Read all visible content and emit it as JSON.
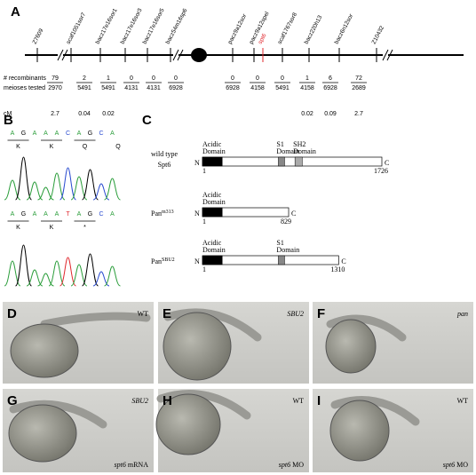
{
  "panel_a": {
    "label": "A",
    "markers": [
      {
        "name": "Z7609",
        "color": "#000000"
      },
      {
        "name": "scaf1051sor7",
        "color": "#000000"
      },
      {
        "name": "bacz17e16sor1",
        "color": "#000000"
      },
      {
        "name": "bacz17e16sor3",
        "color": "#000000"
      },
      {
        "name": "bacz17e16sor5",
        "color": "#000000"
      },
      {
        "name": "bacz54m16sp6",
        "color": "#000000"
      },
      {
        "name": "pacz9a12sor",
        "color": "#000000"
      },
      {
        "name": "pacz9a12spel",
        "color": "#000000"
      },
      {
        "name": "spt6",
        "color": "#e0282e"
      },
      {
        "name": "scaf1767sor8",
        "color": "#000000"
      },
      {
        "name": "bacz220h13",
        "color": "#000000"
      },
      {
        "name": "bacz6n12sor",
        "color": "#000000"
      },
      {
        "name": "Z10432",
        "color": "#000000"
      }
    ],
    "row_labels": [
      "# recombinants",
      "meioses tested",
      "cM"
    ],
    "recombinants": [
      "79",
      "2",
      "1",
      "0",
      "0",
      "0",
      "0",
      "0",
      "0",
      "1",
      "6",
      "72"
    ],
    "meioses": [
      "2970",
      "5491",
      "5491",
      "4131",
      "4131",
      "6928",
      "6928",
      "4158",
      "5491",
      "4158",
      "6928",
      "2689"
    ],
    "cm": [
      "2.7",
      "0.04",
      "0.02",
      null,
      null,
      null,
      null,
      null,
      null,
      "0.02",
      "0.09",
      "2.7"
    ]
  },
  "panel_b": {
    "label": "B",
    "traces": [
      {
        "bases": [
          "A",
          "G",
          "A",
          "A",
          "A",
          "C",
          "A",
          "G",
          "C",
          "A"
        ],
        "aa": [
          "K",
          "K",
          "Q",
          "Q"
        ]
      },
      {
        "bases": [
          "A",
          "G",
          "A",
          "A",
          "A",
          "T",
          "A",
          "G",
          "C",
          "A"
        ],
        "aa": [
          "K",
          "K",
          "*"
        ]
      }
    ]
  },
  "panel_c": {
    "label": "C",
    "n": "N",
    "c": "C",
    "start": "1",
    "constructs": [
      {
        "name": "wild type",
        "name2": "Spt6",
        "end": "1726",
        "domains": [
          {
            "line1": "Acidic",
            "line2": "Domain"
          },
          {
            "line1": "S1",
            "line2": "Domain"
          },
          {
            "line1": "SH2",
            "line2": "Domain"
          }
        ]
      },
      {
        "name": "Pan",
        "sup": "m313",
        "end": "829",
        "domains": [
          {
            "line1": "Acidic",
            "line2": "Domain"
          }
        ]
      },
      {
        "name": "Pan",
        "sup": "SBU2",
        "end": "1310",
        "domains": [
          {
            "line1": "Acidic",
            "line2": "Domain"
          },
          {
            "line1": "S1",
            "line2": "Domain"
          }
        ]
      }
    ]
  },
  "photos": [
    {
      "label": "D",
      "tag": "WT"
    },
    {
      "label": "E",
      "tag": "SBU2"
    },
    {
      "label": "F",
      "tag": "pan"
    },
    {
      "label": "G",
      "tag": "SBU2",
      "caption_gene": "spt6",
      "caption_rest": "mRNA"
    },
    {
      "label": "H",
      "tag": "WT",
      "caption_gene": "spt6",
      "caption_rest": "MO"
    },
    {
      "label": "I",
      "tag": "WT",
      "caption_gene": "spt6",
      "caption_rest": "MO"
    }
  ]
}
